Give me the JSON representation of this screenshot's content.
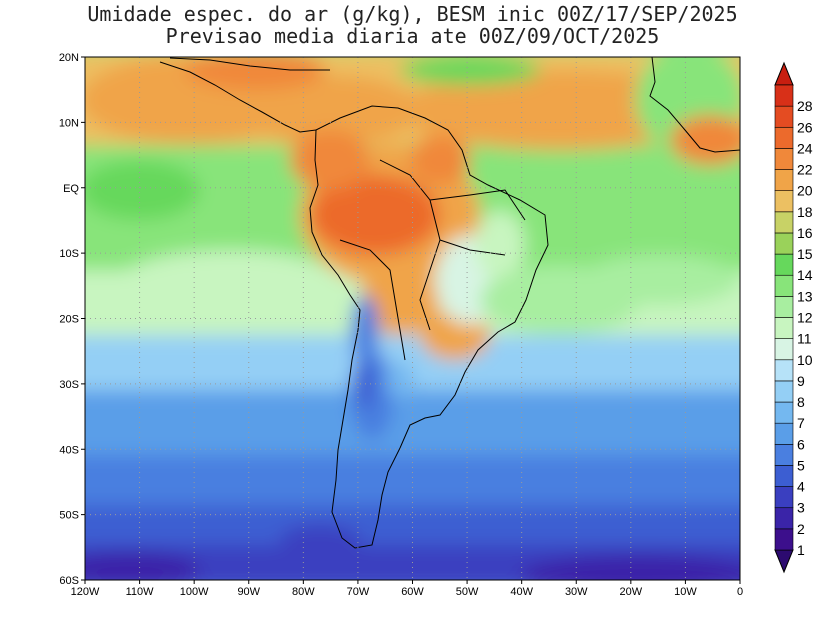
{
  "title": {
    "line1": "Umidade espec. do ar (g/kg), BESM inic 00Z/17/SEP/2025",
    "line2": "Previsao media diaria ate 00Z/09/OCT/2025"
  },
  "map": {
    "lon_range": [
      -120,
      0
    ],
    "lat_range": [
      -60,
      20
    ],
    "lon_labels": [
      "120W",
      "110W",
      "100W",
      "90W",
      "80W",
      "70W",
      "60W",
      "50W",
      "40W",
      "30W",
      "20W",
      "10W",
      "0"
    ],
    "lat_labels": [
      "20N",
      "10N",
      "EQ",
      "10S",
      "20S",
      "30S",
      "40S",
      "50S",
      "60S"
    ],
    "gridlines": "dotted"
  },
  "colorbar": {
    "levels": [
      "1",
      "2",
      "3",
      "4",
      "5",
      "6",
      "7",
      "8",
      "9",
      "10",
      "11",
      "12",
      "13",
      "14",
      "15",
      "16",
      "18",
      "20",
      "22",
      "24",
      "26",
      "28"
    ],
    "colors": [
      "#3c0f8c",
      "#3a24a8",
      "#3a3fc0",
      "#3c5ed2",
      "#4a7fe0",
      "#5a9ee8",
      "#74b8f0",
      "#94cff5",
      "#b6e2f8",
      "#d8f4e4",
      "#c8f5c0",
      "#a8eea0",
      "#88e47a",
      "#66d85c",
      "#9ad25a",
      "#c8d266",
      "#ecc062",
      "#f0a448",
      "#f0883a",
      "#ec6a2c",
      "#e44c22",
      "#d83018"
    ],
    "under_color": "#2c0a70",
    "over_color": "#c81e10"
  }
}
